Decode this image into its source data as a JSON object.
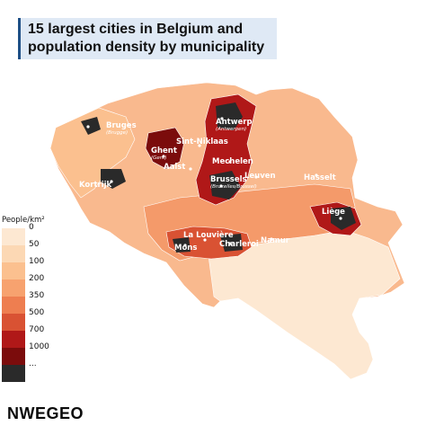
{
  "title": {
    "line1": "15 largest cities in Belgium and",
    "line2": "population density by municipality"
  },
  "legend": {
    "title": "People/km²",
    "labels": [
      "0",
      "50",
      "100",
      "200",
      "350",
      "500",
      "700",
      "1000",
      "..."
    ],
    "colors": [
      "#fde8d2",
      "#fcd8b4",
      "#fbc08f",
      "#f7a26f",
      "#ee7e50",
      "#d95233",
      "#b01818",
      "#7b0c0c",
      "#2a2a2a"
    ]
  },
  "cities": [
    {
      "name": "Antwerp",
      "alt": "(Antwerpen)"
    },
    {
      "name": "Bruges",
      "alt": "(Brugge)"
    },
    {
      "name": "Sint-Niklaas",
      "alt": ""
    },
    {
      "name": "Ghent",
      "alt": "(Gent)"
    },
    {
      "name": "Mechelen",
      "alt": ""
    },
    {
      "name": "Aalst",
      "alt": ""
    },
    {
      "name": "Kortrijk",
      "alt": ""
    },
    {
      "name": "Brussels",
      "alt": "(Bruxelles/Brussel)"
    },
    {
      "name": "Leuven",
      "alt": ""
    },
    {
      "name": "Hasselt",
      "alt": ""
    },
    {
      "name": "Liège",
      "alt": ""
    },
    {
      "name": "La Louvière",
      "alt": ""
    },
    {
      "name": "Mons",
      "alt": ""
    },
    {
      "name": "Charleroi",
      "alt": ""
    },
    {
      "name": "Namur",
      "alt": ""
    }
  ],
  "brand": "NWEGEO"
}
